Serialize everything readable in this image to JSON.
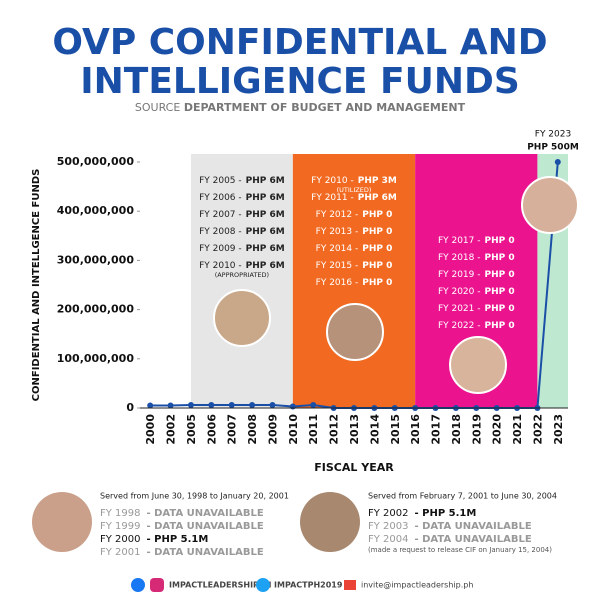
{
  "chart_data": {
    "type": "line",
    "title": [
      "OVP CONFIDENTIAL AND",
      "INTELLIGENCE FUNDS"
    ],
    "subtitle": {
      "prefix": "SOURCE",
      "emphasis": "DEPARTMENT OF BUDGET AND MANAGEMENT"
    },
    "y_label": "CONFIDENTIAL AND INTELLGENCE FUNDS",
    "x_label": "FISCAL YEAR",
    "categories": [
      "2000",
      "2002",
      "2005",
      "2006",
      "2007",
      "2008",
      "2009",
      "2010",
      "2011",
      "2012",
      "2013",
      "2014",
      "2015",
      "2016",
      "2017",
      "2018",
      "2019",
      "2020",
      "2021",
      "2022",
      "2023"
    ],
    "series": [
      {
        "name": "Confidential and Intelligence Funds",
        "color": "#1a4fa8",
        "values": [
          5100000,
          5100000,
          6000000,
          6000000,
          6000000,
          6000000,
          6000000,
          3000000,
          6000000,
          0,
          0,
          0,
          0,
          0,
          0,
          0,
          0,
          0,
          0,
          0,
          500000000
        ]
      }
    ],
    "ylim": [
      0,
      500000000
    ],
    "yticks": [
      {
        "value": 0,
        "label": "0"
      },
      {
        "value": 100000000,
        "label": "100,000,000"
      },
      {
        "value": 200000000,
        "label": "200,000,000"
      },
      {
        "value": 300000000,
        "label": "300,000,000"
      },
      {
        "value": 400000000,
        "label": "400,000,000"
      },
      {
        "value": 500000000,
        "label": "500,000,000"
      }
    ],
    "grid": false,
    "annotation": [
      "FY 2023",
      "PHP 500M"
    ],
    "periods": [
      {
        "span": [
          "2005",
          "2010"
        ],
        "color": "#e6e6e6",
        "text_color": "#222",
        "lines": [
          {
            "fy": "FY 2005 -",
            "amount": "PHP 6M"
          },
          {
            "fy": "FY 2006 -",
            "amount": "PHP 6M"
          },
          {
            "fy": "FY 2007 -",
            "amount": "PHP 6M"
          },
          {
            "fy": "FY 2008 -",
            "amount": "PHP 6M"
          },
          {
            "fy": "FY 2009 -",
            "amount": "PHP 6M"
          },
          {
            "fy": "FY 2010 -",
            "amount": "PHP 6M",
            "note": "(APPROPRIATED)"
          }
        ]
      },
      {
        "span": [
          "2010",
          "2016"
        ],
        "color": "#f26a21",
        "text_color": "#fff",
        "lines": [
          {
            "fy": "FY 2010 -",
            "amount": "PHP 3M",
            "note": "(UTILIZED)"
          },
          {
            "fy": "FY 2011 -",
            "amount": "PHP 6M"
          },
          {
            "fy": "FY 2012 -",
            "amount": "PHP 0"
          },
          {
            "fy": "FY 2013 -",
            "amount": "PHP 0"
          },
          {
            "fy": "FY 2014 -",
            "amount": "PHP 0"
          },
          {
            "fy": "FY 2015 -",
            "amount": "PHP 0"
          },
          {
            "fy": "FY 2016 -",
            "amount": "PHP 0"
          }
        ]
      },
      {
        "span": [
          "2016",
          "2022"
        ],
        "color": "#ec138f",
        "text_color": "#fff",
        "lines": [
          {
            "fy": "FY 2017 -",
            "amount": "PHP 0"
          },
          {
            "fy": "FY 2018 -",
            "amount": "PHP 0"
          },
          {
            "fy": "FY 2019 -",
            "amount": "PHP 0"
          },
          {
            "fy": "FY 2020 -",
            "amount": "PHP 0"
          },
          {
            "fy": "FY 2021 -",
            "amount": "PHP 0"
          },
          {
            "fy": "FY 2022 -",
            "amount": "PHP 0"
          }
        ]
      },
      {
        "span": [
          "2022",
          "2023"
        ],
        "color": "#bfe8d0",
        "text_color": "#222",
        "lines": []
      }
    ]
  },
  "footer": {
    "panels": [
      {
        "served": "Served from June 30, 1998 to January 20, 2001",
        "lines": [
          {
            "fy": "FY 1998",
            "status": "- DATA UNAVAILABLE",
            "available": false
          },
          {
            "fy": "FY 1999",
            "status": "- DATA UNAVAILABLE",
            "available": false
          },
          {
            "fy": "FY 2000",
            "status": "- PHP 5.1M",
            "available": true
          },
          {
            "fy": "FY 2001",
            "status": "- DATA UNAVAILABLE",
            "available": false
          }
        ]
      },
      {
        "served": "Served from February 7, 2001 to June 30, 2004",
        "lines": [
          {
            "fy": "FY 2002",
            "status": "- PHP 5.1M",
            "available": true
          },
          {
            "fy": "FY 2003",
            "status": "- DATA UNAVAILABLE",
            "available": false
          },
          {
            "fy": "FY 2004",
            "status": "- DATA UNAVAILABLE",
            "available": false
          }
        ],
        "note": "(made a request to release CIF on January 15, 2004)"
      }
    ],
    "social": [
      "IMPACTLEADERSHIPPH",
      "IMPACTPH2019",
      "invite@impactleadership.ph"
    ]
  }
}
